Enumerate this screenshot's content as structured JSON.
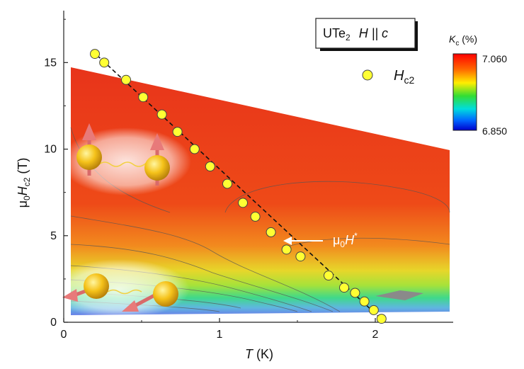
{
  "chart_data": {
    "type": "scatter",
    "title": "",
    "xlabel": {
      "symbol": "T",
      "unit": " (K)"
    },
    "ylabel": {
      "prefix": "μ",
      "sub0": "0",
      "main": "H",
      "sub1": "c2",
      "unit": " (T)"
    },
    "xlim": [
      0,
      2.5
    ],
    "ylim": [
      0,
      18
    ],
    "x_ticks": [
      "0",
      "1",
      "2"
    ],
    "y_ticks": [
      "0",
      "5",
      "10",
      "15"
    ],
    "box_label": {
      "material": "UTe",
      "subscript": "2",
      "field": "H || c"
    },
    "legend": {
      "position": "top-right",
      "series_main": "H",
      "series_sub": "c2"
    },
    "colorbar": {
      "title_main": "K",
      "title_sub": "c",
      "title_unit": " (%)",
      "max": "7.060",
      "min": "6.850"
    },
    "annotation": {
      "prefix": "μ",
      "sub": "0",
      "main": "H",
      "sup": "*"
    },
    "series": [
      {
        "name": "Hc2",
        "points": [
          [
            0.2,
            15.5
          ],
          [
            0.26,
            15.0
          ],
          [
            0.4,
            14.0
          ],
          [
            0.51,
            13.0
          ],
          [
            0.63,
            12.0
          ],
          [
            0.73,
            11.0
          ],
          [
            0.84,
            10.0
          ],
          [
            0.94,
            9.0
          ],
          [
            1.05,
            8.0
          ],
          [
            1.15,
            6.9
          ],
          [
            1.23,
            6.1
          ],
          [
            1.33,
            5.2
          ],
          [
            1.43,
            4.2
          ],
          [
            1.52,
            3.8
          ],
          [
            1.7,
            2.7
          ],
          [
            1.8,
            2.0
          ],
          [
            1.87,
            1.7
          ],
          [
            1.93,
            1.2
          ],
          [
            1.99,
            0.7
          ],
          [
            2.04,
            0.2
          ]
        ]
      }
    ],
    "fit_line": [
      [
        0.18,
        15.7
      ],
      [
        2.06,
        0.0
      ]
    ]
  }
}
